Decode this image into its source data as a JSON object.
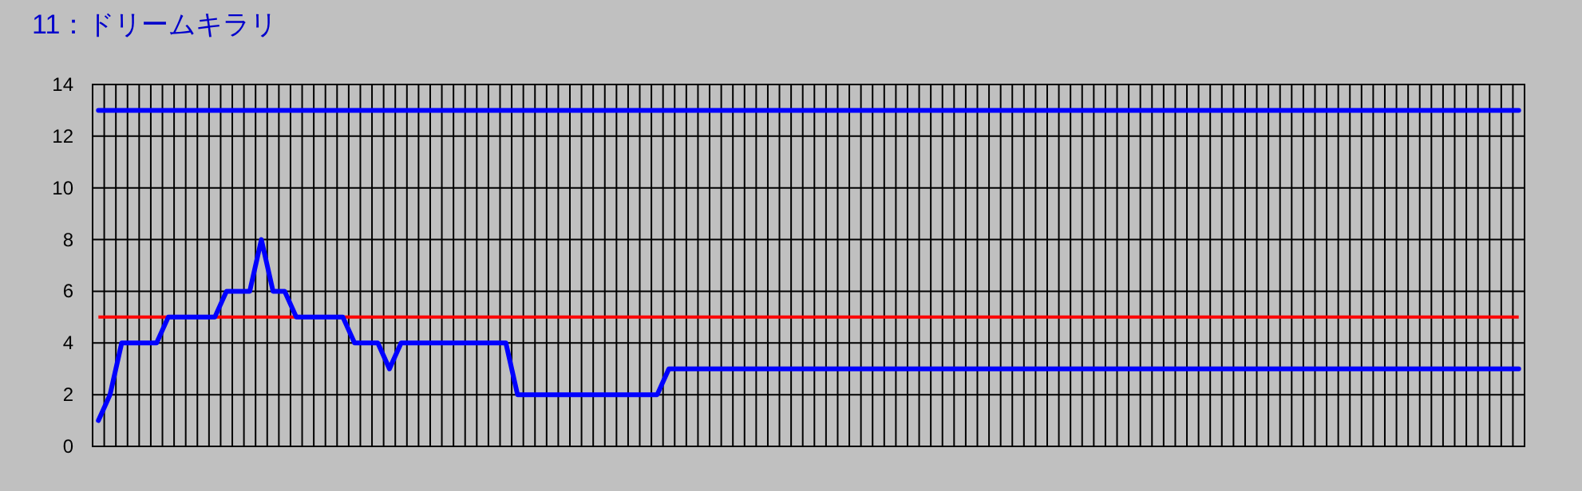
{
  "chart_data": {
    "type": "line",
    "title": "11：ドリームキラリ",
    "categories": [
      null,
      null,
      null,
      null,
      null,
      null,
      null,
      null,
      null,
      null,
      null,
      null,
      null,
      null,
      null,
      null,
      null,
      null,
      null,
      null,
      null,
      null,
      null,
      null,
      null,
      null,
      null,
      null,
      null,
      null,
      null,
      null,
      null,
      null,
      null,
      null,
      null,
      null,
      null,
      null,
      null,
      null,
      null,
      null,
      null,
      null,
      null,
      null,
      null,
      null,
      null,
      null,
      null,
      null,
      null,
      null,
      null,
      null,
      null,
      null,
      null,
      null,
      null,
      null,
      null,
      null,
      null,
      null,
      null,
      null,
      null,
      null,
      null,
      null,
      null,
      null,
      null,
      null,
      null,
      null,
      null,
      null,
      null,
      null,
      null,
      null,
      null,
      null,
      null,
      null,
      null,
      null,
      null,
      null,
      null,
      null,
      null,
      null,
      null,
      null,
      null,
      null,
      null,
      null,
      null,
      null,
      null,
      null,
      null,
      null,
      null,
      null,
      null,
      null,
      null,
      null,
      null,
      null,
      null,
      null,
      null,
      null,
      null
    ],
    "series": [
      {
        "color": "#0000ff",
        "values": [
          13,
          13,
          13,
          13,
          13,
          13,
          13,
          13,
          13,
          13,
          13,
          13,
          13,
          13,
          13,
          13,
          13,
          13,
          13,
          13,
          13,
          13,
          13,
          13,
          13,
          13,
          13,
          13,
          13,
          13,
          13,
          13,
          13,
          13,
          13,
          13,
          13,
          13,
          13,
          13,
          13,
          13,
          13,
          13,
          13,
          13,
          13,
          13,
          13,
          13,
          13,
          13,
          13,
          13,
          13,
          13,
          13,
          13,
          13,
          13,
          13,
          13,
          13,
          13,
          13,
          13,
          13,
          13,
          13,
          13,
          13,
          13,
          13,
          13,
          13,
          13,
          13,
          13,
          13,
          13,
          13,
          13,
          13,
          13,
          13,
          13,
          13,
          13,
          13,
          13,
          13,
          13,
          13,
          13,
          13,
          13,
          13,
          13,
          13,
          13,
          13,
          13,
          13,
          13,
          13,
          13,
          13,
          13,
          13,
          13,
          13,
          13,
          13,
          13,
          13,
          13,
          13,
          13,
          13,
          13,
          13,
          13,
          13
        ]
      },
      {
        "color": "#0000ff",
        "values": [
          1,
          2,
          4,
          4,
          4,
          4,
          5,
          5,
          5,
          5,
          5,
          6,
          6,
          6,
          8,
          6,
          6,
          5,
          5,
          5,
          5,
          5,
          4,
          4,
          4,
          3,
          4,
          4,
          4,
          4,
          4,
          4,
          4,
          4,
          4,
          4,
          2,
          2,
          2,
          2,
          2,
          2,
          2,
          2,
          2,
          2,
          2,
          2,
          2,
          3,
          3,
          3,
          3,
          3,
          3,
          3,
          3,
          3,
          3,
          3,
          3,
          3,
          3,
          3,
          3,
          3,
          3,
          3,
          3,
          3,
          3,
          3,
          3,
          3,
          3,
          3,
          3,
          3,
          3,
          3,
          3,
          3,
          3,
          3,
          3,
          3,
          3,
          3,
          3,
          3,
          3,
          3,
          3,
          3,
          3,
          3,
          3,
          3,
          3,
          3,
          3,
          3,
          3,
          3,
          3,
          3,
          3,
          3,
          3,
          3,
          3,
          3,
          3,
          3,
          3,
          3,
          3,
          3,
          3,
          3,
          3,
          3,
          3
        ]
      }
    ],
    "ref_lines": [
      {
        "axis": "y",
        "value": 5,
        "color": "#ff0000"
      }
    ],
    "ylim": [
      0,
      14
    ],
    "yticks": [
      0,
      2,
      4,
      6,
      8,
      10,
      12,
      14
    ],
    "grid": true,
    "tick_labels": "y",
    "marker": "none",
    "line_style": "solid"
  }
}
